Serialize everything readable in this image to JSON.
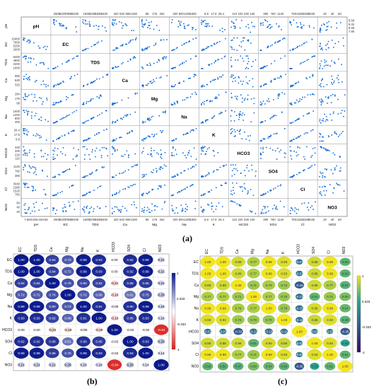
{
  "chart_data": [
    {
      "type": "scatter",
      "panel_label": "(a)",
      "variables": [
        "pH",
        "EC",
        "TDS",
        "Ca",
        "Mg",
        "Na",
        "K",
        "HCO3",
        "SO4",
        "Cl",
        "NO3"
      ],
      "top_ticks": [
        [
          "2600",
          "5200",
          "7800",
          "10400"
        ],
        [
          "1600",
          "3200",
          "4800",
          "6400"
        ],
        [
          "320",
          "640",
          "960",
          "1280"
        ],
        [
          "88",
          "176",
          "264"
        ],
        [
          "400",
          "800",
          "1200",
          "1600"
        ],
        [
          "8.8",
          "17.6",
          "26.4"
        ],
        [
          "110",
          "220",
          "330",
          "440"
        ],
        [
          "380",
          "760",
          "1140"
        ],
        [
          "760",
          "1520",
          "2280",
          "3040"
        ],
        [
          "20",
          "40",
          "60"
        ]
      ],
      "bottom_ticks": [
        [
          "7.80",
          "8.06",
          "8.32",
          "8.58"
        ],
        [
          "2600",
          "5200",
          "7800",
          "10400"
        ],
        [
          "1600",
          "3200",
          "4800",
          "6400"
        ],
        [
          "320",
          "640",
          "960",
          "1280"
        ],
        [
          "88",
          "176",
          "264"
        ],
        [
          "400",
          "800",
          "1200",
          "1600"
        ],
        [
          "8.8",
          "17.6",
          "26.4"
        ],
        [
          "110",
          "220",
          "330",
          "440"
        ],
        [
          "380",
          "760",
          "1140"
        ],
        [
          "760",
          "1520",
          "2280",
          "3040"
        ],
        [
          "20",
          "40",
          "60"
        ]
      ],
      "left_ticks": [
        [],
        [
          "2600",
          "5200",
          "7800",
          "10400"
        ],
        [
          "1600",
          "3200",
          "4800",
          "6400"
        ],
        [
          "320",
          "640",
          "960"
        ],
        [
          "88",
          "176",
          "264"
        ],
        [
          "400",
          "800",
          "1200",
          "1600"
        ],
        [
          "8.8",
          "17.6",
          "26.4"
        ],
        [
          "110",
          "220",
          "330",
          "440"
        ],
        [
          "380",
          "760",
          "1140"
        ],
        [
          "760",
          "1520",
          "2280",
          "3040"
        ],
        [
          "20",
          "40",
          "60"
        ]
      ],
      "right_ticks": [
        "8.58",
        "8.32",
        "8.06",
        "7.80"
      ]
    },
    {
      "type": "heatmap",
      "panel_label": "(b)",
      "variables": [
        "EC",
        "TDS",
        "Ca",
        "Mg",
        "Na",
        "K",
        "HCO3",
        "SO4",
        "Cl",
        "NO3"
      ],
      "values": [
        [
          1.0,
          1.0,
          0.84,
          0.72,
          0.99,
          0.93,
          0.0,
          0.92,
          0.99,
          0.21
        ],
        [
          1.0,
          1.0,
          0.84,
          0.72,
          0.99,
          0.93,
          0.0,
          0.92,
          0.99,
          0.21
        ],
        [
          0.84,
          0.84,
          1.0,
          0.76,
          0.8,
          0.82,
          -0.21,
          0.88,
          0.86,
          0.21
        ],
        [
          0.72,
          0.72,
          0.76,
          1.0,
          0.72,
          0.68,
          -0.19,
          0.61,
          0.75,
          0.25
        ],
        [
          0.99,
          0.99,
          0.8,
          0.72,
          1.0,
          0.91,
          -0.05,
          0.9,
          0.99,
          0.18
        ],
        [
          0.93,
          0.93,
          0.82,
          0.68,
          0.91,
          1.0,
          -0.19,
          0.85,
          0.93,
          0.16
        ],
        [
          0.0,
          0.0,
          -0.21,
          -0.19,
          -0.05,
          -0.19,
          1.0,
          -0.02,
          -0.02,
          -0.94
        ],
        [
          0.92,
          0.92,
          0.88,
          0.61,
          0.9,
          0.85,
          -0.02,
          1.0,
          0.93,
          0.25
        ],
        [
          0.99,
          0.99,
          0.86,
          0.75,
          0.99,
          0.93,
          -0.02,
          0.93,
          1.0,
          0.14
        ],
        [
          0.21,
          0.21,
          0.21,
          0.25,
          0.18,
          0.16,
          -0.94,
          0.25,
          0.14,
          1.0
        ]
      ],
      "scale_ticks": [
        "1",
        "0.333",
        "-0.333",
        "-1"
      ]
    },
    {
      "type": "heatmap",
      "panel_label": "(c)",
      "variables": [
        "EC",
        "TDS",
        "Ca",
        "Mg",
        "Na",
        "K",
        "HCO3",
        "SO4",
        "Cl",
        "NO3"
      ],
      "values": [
        [
          1.0,
          1.0,
          0.89,
          0.77,
          0.99,
          0.93,
          -0.07,
          0.88,
          0.99,
          0.5
        ],
        [
          1.0,
          1.0,
          0.89,
          0.77,
          0.99,
          0.93,
          -0.07,
          0.88,
          0.99,
          0.5
        ],
        [
          0.89,
          0.89,
          1.0,
          0.71,
          0.76,
          0.72,
          -0.33,
          0.89,
          0.77,
          0.47
        ],
        [
          0.77,
          0.77,
          0.71,
          1.0,
          0.77,
          0.7,
          -0.13,
          0.51,
          0.71,
          0.6
        ],
        [
          0.99,
          0.99,
          0.76,
          0.77,
          1.0,
          0.7,
          -0.15,
          0.9,
          0.99,
          0.54
        ],
        [
          0.93,
          0.93,
          0.72,
          0.7,
          0.7,
          1.0,
          -0.11,
          0.86,
          0.93,
          0.49
        ],
        [
          -0.07,
          -0.07,
          -0.33,
          -0.13,
          -0.15,
          -0.11,
          1.0,
          -0.03,
          -0.03,
          -0.35
        ],
        [
          0.88,
          0.88,
          0.89,
          0.51,
          0.9,
          0.86,
          -0.03,
          1.0,
          0.93,
          0.33
        ],
        [
          0.99,
          0.99,
          0.77,
          0.71,
          0.99,
          0.93,
          -0.03,
          0.93,
          1.0,
          0.51
        ],
        [
          0.5,
          0.5,
          0.47,
          0.6,
          0.54,
          0.49,
          -0.35,
          0.33,
          0.51,
          1.0
        ]
      ],
      "scale_ticks": [
        "1",
        "0.333",
        "-0.333",
        "-1"
      ]
    }
  ]
}
